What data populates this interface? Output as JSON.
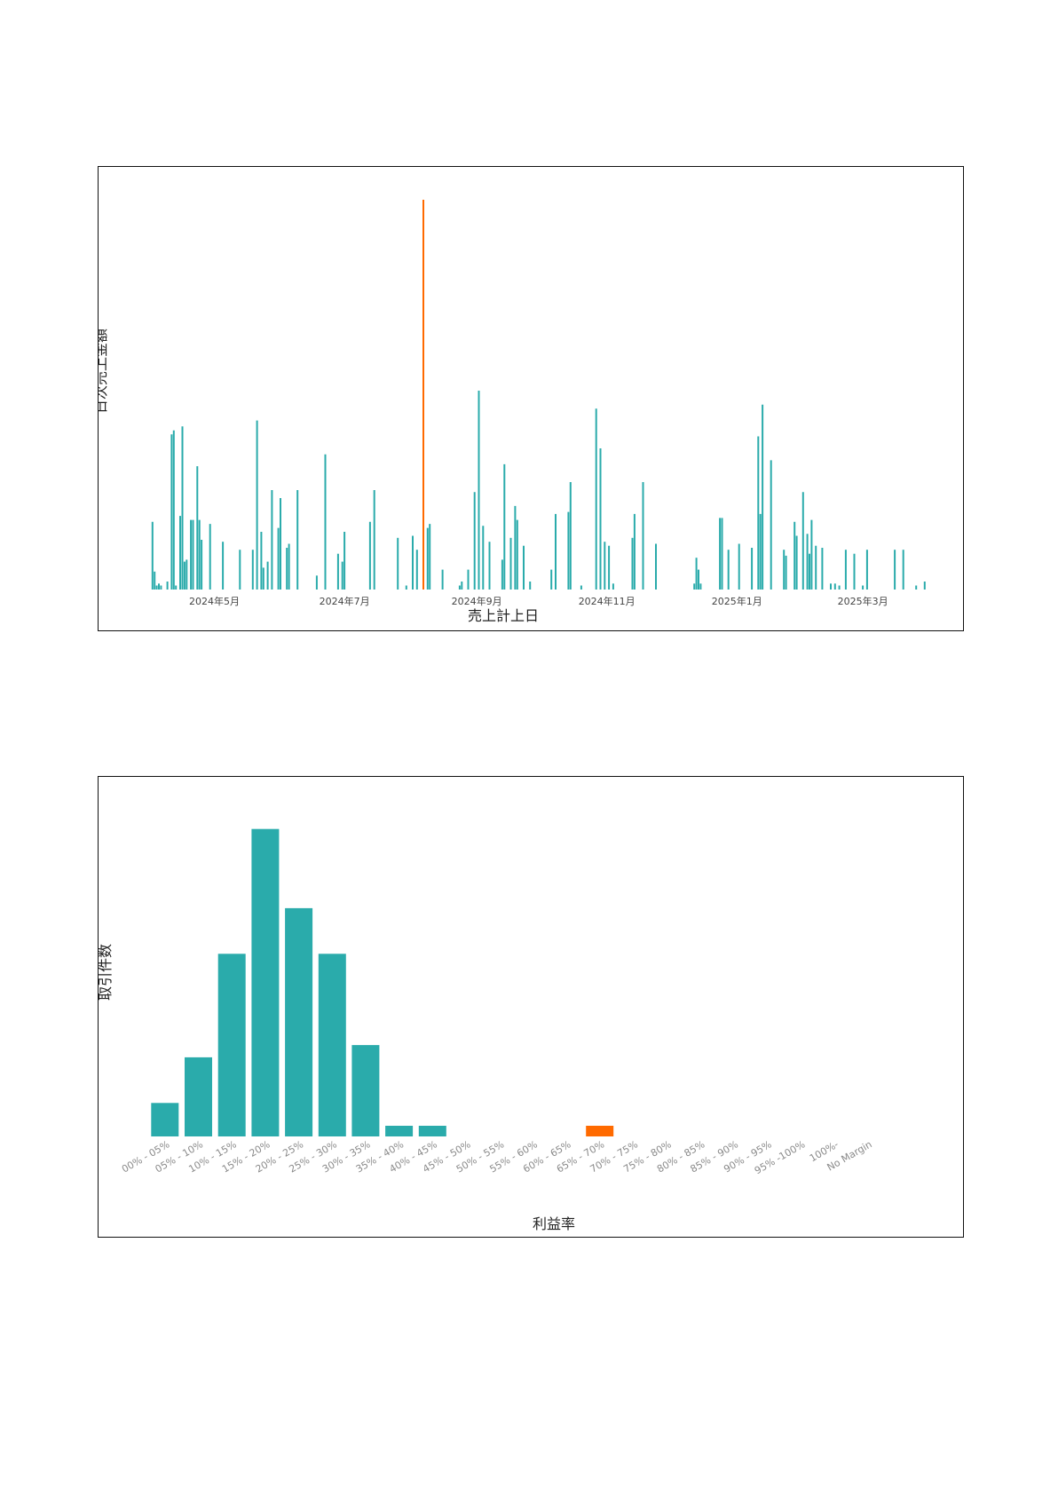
{
  "chart_data": [
    {
      "type": "bar",
      "xlabel": "売上計上日",
      "ylabel": "日次売上金額",
      "x_ticks": [
        "2024年5月",
        "2024年7月",
        "2024年9月",
        "2024年11月",
        "2025年1月",
        "2025年3月"
      ],
      "x_range": [
        "2024-03-31",
        "2025-04-07"
      ],
      "y_range": [
        0,
        100
      ],
      "grid": false,
      "colors": {
        "normal": "#2aabab",
        "highlight": "#ff6a00"
      },
      "y_scale_note": "no numeric y ticks shown; values are relative heights (0-100)",
      "series": [
        {
          "points": [
            [
              "2024-04-02",
              17
            ],
            [
              "2024-04-03",
              4.5
            ],
            [
              "2024-04-04",
              1
            ],
            [
              "2024-04-05",
              1.5
            ],
            [
              "2024-04-06",
              1
            ],
            [
              "2024-04-09",
              2
            ],
            [
              "2024-04-11",
              39
            ],
            [
              "2024-04-12",
              40
            ],
            [
              "2024-04-13",
              1
            ],
            [
              "2024-04-15",
              18.5
            ],
            [
              "2024-04-16",
              41
            ],
            [
              "2024-04-17",
              7
            ],
            [
              "2024-04-18",
              7.5
            ],
            [
              "2024-04-20",
              17.5
            ],
            [
              "2024-04-21",
              17.5
            ],
            [
              "2024-04-23",
              31
            ],
            [
              "2024-04-24",
              17.5
            ],
            [
              "2024-04-25",
              12.5
            ],
            [
              "2024-04-29",
              16.5
            ],
            [
              "2024-05-05",
              12
            ],
            [
              "2024-05-13",
              10
            ],
            [
              "2024-05-19",
              10
            ],
            [
              "2024-05-21",
              42.5
            ],
            [
              "2024-05-23",
              14.5
            ],
            [
              "2024-05-24",
              5.5
            ],
            [
              "2024-05-26",
              7
            ],
            [
              "2024-05-28",
              25
            ],
            [
              "2024-05-31",
              15.5
            ],
            [
              "2024-06-01",
              23
            ],
            [
              "2024-06-04",
              10.5
            ],
            [
              "2024-06-05",
              11.5
            ],
            [
              "2024-06-09",
              25
            ],
            [
              "2024-06-18",
              3.5
            ],
            [
              "2024-06-22",
              34
            ],
            [
              "2024-06-28",
              9
            ],
            [
              "2024-06-30",
              7
            ],
            [
              "2024-07-01",
              14.5
            ],
            [
              "2024-07-13",
              17
            ],
            [
              "2024-07-15",
              25
            ],
            [
              "2024-07-26",
              13
            ],
            [
              "2024-07-30",
              1
            ],
            [
              "2024-08-02",
              13.5
            ],
            [
              "2024-08-04",
              10
            ],
            [
              "2024-08-07",
              98
            ],
            [
              "2024-08-09",
              15.5
            ],
            [
              "2024-08-10",
              16.5
            ],
            [
              "2024-08-16",
              5
            ],
            [
              "2024-08-24",
              1
            ],
            [
              "2024-08-25",
              2
            ],
            [
              "2024-08-28",
              5
            ],
            [
              "2024-08-31",
              24.5
            ],
            [
              "2024-09-02",
              50
            ],
            [
              "2024-09-04",
              16
            ],
            [
              "2024-09-07",
              12
            ],
            [
              "2024-09-13",
              7.5
            ],
            [
              "2024-09-14",
              31.5
            ],
            [
              "2024-09-17",
              13
            ],
            [
              "2024-09-19",
              21
            ],
            [
              "2024-09-20",
              17.5
            ],
            [
              "2024-09-23",
              11
            ],
            [
              "2024-09-26",
              2
            ],
            [
              "2024-10-06",
              5
            ],
            [
              "2024-10-08",
              19
            ],
            [
              "2024-10-14",
              19.5
            ],
            [
              "2024-10-15",
              27
            ],
            [
              "2024-10-20",
              1
            ],
            [
              "2024-10-27",
              45.5
            ],
            [
              "2024-10-29",
              35.5
            ],
            [
              "2024-10-31",
              12
            ],
            [
              "2024-11-02",
              11
            ],
            [
              "2024-11-04",
              1.5
            ],
            [
              "2024-11-13",
              13
            ],
            [
              "2024-11-14",
              19
            ],
            [
              "2024-11-18",
              27
            ],
            [
              "2024-11-24",
              11.5
            ],
            [
              "2024-12-12",
              1.5
            ],
            [
              "2024-12-13",
              8
            ],
            [
              "2024-12-14",
              5
            ],
            [
              "2024-12-15",
              1.5
            ],
            [
              "2024-12-24",
              18
            ],
            [
              "2024-12-25",
              18
            ],
            [
              "2024-12-28",
              10
            ],
            [
              "2025-01-02",
              11.5
            ],
            [
              "2025-01-08",
              10.5
            ],
            [
              "2025-01-11",
              38.5
            ],
            [
              "2025-01-12",
              19
            ],
            [
              "2025-01-13",
              46.5
            ],
            [
              "2025-01-17",
              32.5
            ],
            [
              "2025-01-23",
              10
            ],
            [
              "2025-01-24",
              8.5
            ],
            [
              "2025-01-28",
              17
            ],
            [
              "2025-01-29",
              13.5
            ],
            [
              "2025-02-01",
              24.5
            ],
            [
              "2025-02-03",
              14
            ],
            [
              "2025-02-04",
              9
            ],
            [
              "2025-02-05",
              17.5
            ],
            [
              "2025-02-07",
              11
            ],
            [
              "2025-02-10",
              10.5
            ],
            [
              "2025-02-14",
              1.5
            ],
            [
              "2025-02-16",
              1.5
            ],
            [
              "2025-02-18",
              1
            ],
            [
              "2025-02-21",
              10
            ],
            [
              "2025-02-25",
              9
            ],
            [
              "2025-03-01",
              1
            ],
            [
              "2025-03-03",
              10
            ],
            [
              "2025-03-16",
              10
            ],
            [
              "2025-03-20",
              10
            ],
            [
              "2025-03-26",
              1
            ],
            [
              "2025-03-30",
              2
            ]
          ],
          "highlight_dates": [
            "2024-08-07"
          ]
        }
      ]
    },
    {
      "type": "bar",
      "xlabel": "利益率",
      "ylabel": "取引件数",
      "categories": [
        "00% - 05%",
        "05% - 10%",
        "10% - 15%",
        "15% - 20%",
        "20% - 25%",
        "25% - 30%",
        "30% - 35%",
        "35% - 40%",
        "40% - 45%",
        "45% - 50%",
        "50% - 55%",
        "55% - 60%",
        "60% - 65%",
        "65% - 70%",
        "70% - 75%",
        "75% - 80%",
        "80% - 85%",
        "85% - 90%",
        "90% - 95%",
        "95% -100%",
        "100%-",
        "No Margin"
      ],
      "values": [
        11,
        26,
        60,
        101,
        75,
        60,
        30,
        3.5,
        3.5,
        0,
        0,
        0,
        0,
        3.5,
        0,
        0,
        0,
        0,
        0,
        0,
        0,
        0
      ],
      "highlight": [
        "65% - 70%"
      ],
      "y_range": [
        0,
        105
      ],
      "grid": false,
      "colors": {
        "normal": "#2aabab",
        "highlight": "#ff6a00"
      },
      "y_scale_note": "no numeric y ticks shown; values are relative heights"
    }
  ]
}
